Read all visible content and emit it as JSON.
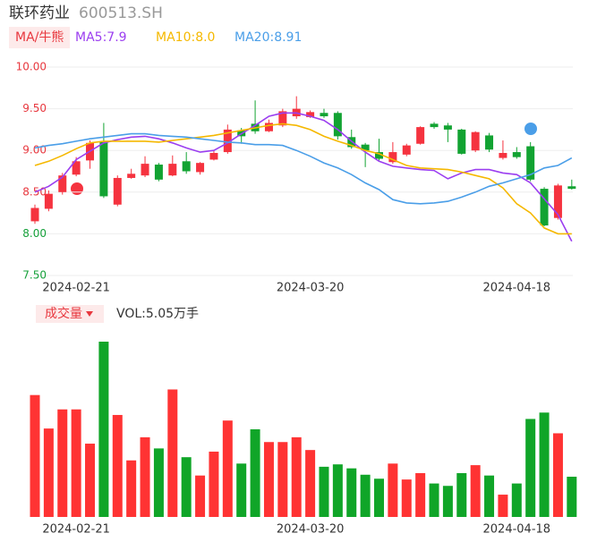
{
  "chart_data": [
    {
      "type": "candlestick",
      "title": "联环药业",
      "subtitle": "600513.SH",
      "indicator_label": "MA/牛熊",
      "categories": [
        null,
        null,
        null,
        "2024-02-21",
        null,
        null,
        null,
        null,
        null,
        null,
        null,
        null,
        null,
        null,
        null,
        null,
        null,
        null,
        null,
        null,
        "2024-03-20",
        null,
        null,
        null,
        null,
        null,
        null,
        null,
        null,
        null,
        null,
        null,
        null,
        null,
        null,
        "2024-04-18",
        null,
        null,
        null,
        null
      ],
      "open": [
        8.15,
        8.3,
        8.5,
        8.71,
        8.88,
        9.1,
        8.35,
        8.67,
        8.7,
        8.83,
        8.7,
        8.87,
        8.74,
        8.89,
        8.98,
        9.24,
        9.32,
        9.23,
        9.3,
        9.41,
        9.4,
        9.45,
        9.45,
        9.16,
        9.07,
        8.98,
        8.86,
        8.95,
        9.08,
        9.32,
        9.3,
        9.25,
        9.0,
        9.18,
        8.91,
        8.98,
        9.05,
        8.54,
        8.19,
        8.57
      ],
      "close": [
        8.31,
        8.48,
        8.7,
        8.87,
        9.09,
        8.45,
        8.67,
        8.72,
        8.84,
        8.65,
        8.84,
        8.75,
        8.85,
        8.97,
        9.25,
        9.17,
        9.23,
        9.33,
        9.47,
        9.5,
        9.46,
        9.41,
        9.17,
        9.04,
        9.0,
        8.9,
        8.98,
        9.06,
        9.28,
        9.28,
        9.25,
        8.96,
        9.22,
        9.01,
        8.97,
        8.92,
        8.65,
        8.1,
        8.58,
        8.54
      ],
      "high": [
        8.35,
        8.52,
        8.73,
        8.92,
        9.12,
        9.33,
        8.7,
        8.78,
        8.93,
        8.85,
        8.94,
        8.98,
        8.86,
        9.0,
        9.31,
        9.27,
        9.6,
        9.37,
        9.5,
        9.65,
        9.48,
        9.5,
        9.47,
        9.25,
        9.09,
        9.14,
        9.1,
        9.08,
        9.29,
        9.34,
        9.33,
        9.26,
        9.23,
        9.21,
        9.12,
        9.04,
        9.1,
        8.56,
        8.6,
        8.65
      ],
      "low": [
        8.12,
        8.27,
        8.47,
        8.69,
        8.78,
        8.43,
        8.33,
        8.66,
        8.68,
        8.63,
        8.69,
        8.72,
        8.71,
        8.88,
        8.96,
        9.08,
        9.2,
        9.22,
        9.28,
        9.38,
        9.39,
        9.39,
        9.13,
        9.02,
        8.8,
        8.88,
        8.84,
        8.93,
        9.07,
        9.26,
        9.1,
        8.95,
        8.98,
        8.98,
        8.89,
        8.9,
        8.63,
        8.09,
        8.17,
        8.53
      ],
      "up_color": "#f5333f",
      "down_color": "#12a332",
      "ylim": [
        7.5,
        10.0
      ],
      "yticks": [
        {
          "value": 10.0,
          "label": "10.00"
        },
        {
          "value": 9.5,
          "label": "9.50"
        },
        {
          "value": 9.0,
          "label": "9.00"
        },
        {
          "value": 8.5,
          "label": "8.50"
        },
        {
          "value": 8.0,
          "label": "8.00"
        },
        {
          "value": 7.5,
          "label": "7.50"
        }
      ],
      "ytick_colors": [
        "#e8383f",
        "#e8383f",
        "#e8383f",
        "#e8383f",
        "#15a03a",
        "#15a03a"
      ],
      "grid": true,
      "series": [
        {
          "name": "MA5:7.9",
          "color": "#9b3ef0",
          "values": [
            8.5,
            8.57,
            8.68,
            8.89,
            8.99,
            9.09,
            9.13,
            9.16,
            9.17,
            9.14,
            9.09,
            9.03,
            8.98,
            9.0,
            9.09,
            9.2,
            9.3,
            9.41,
            9.45,
            9.45,
            9.41,
            9.36,
            9.25,
            9.11,
            8.98,
            8.87,
            8.81,
            8.79,
            8.77,
            8.76,
            8.66,
            8.73,
            8.77,
            8.77,
            8.73,
            8.71,
            8.61,
            8.42,
            8.23,
            7.91
          ]
        },
        {
          "name": "MA10:8.0",
          "color": "#f5b800",
          "values": [
            8.82,
            8.87,
            8.94,
            9.02,
            9.09,
            9.11,
            9.11,
            9.11,
            9.11,
            9.1,
            9.12,
            9.14,
            9.16,
            9.18,
            9.21,
            9.24,
            9.27,
            9.3,
            9.32,
            9.3,
            9.25,
            9.17,
            9.11,
            9.06,
            9.0,
            8.96,
            8.89,
            8.82,
            8.79,
            8.78,
            8.77,
            8.74,
            8.7,
            8.66,
            8.55,
            8.36,
            8.25,
            8.07,
            8.0,
            8.0
          ]
        },
        {
          "name": "MA20:8.91",
          "color": "#4a9ee8",
          "values": [
            9.03,
            9.06,
            9.08,
            9.11,
            9.14,
            9.16,
            9.18,
            9.2,
            9.2,
            9.18,
            9.17,
            9.16,
            9.14,
            9.12,
            9.1,
            9.09,
            9.07,
            9.07,
            9.06,
            9.0,
            8.93,
            8.85,
            8.79,
            8.71,
            8.61,
            8.53,
            8.41,
            8.37,
            8.36,
            8.37,
            8.39,
            8.44,
            8.5,
            8.57,
            8.61,
            8.66,
            8.71,
            8.79,
            8.82,
            8.91
          ]
        }
      ]
    },
    {
      "type": "bar",
      "title": "成交量",
      "label": "VOL:5.05万手",
      "categories": [
        null,
        null,
        null,
        "2024-02-21",
        null,
        null,
        null,
        null,
        null,
        null,
        null,
        null,
        null,
        null,
        null,
        null,
        null,
        null,
        null,
        null,
        "2024-03-20",
        null,
        null,
        null,
        null,
        null,
        null,
        null,
        null,
        null,
        null,
        null,
        null,
        null,
        null,
        "2024-04-18",
        null,
        null,
        null,
        null
      ],
      "values": [
        15.3,
        11.1,
        13.5,
        13.5,
        9.2,
        22.0,
        12.8,
        7.1,
        10.0,
        8.6,
        16.0,
        7.5,
        5.2,
        8.2,
        12.1,
        6.7,
        11.0,
        9.4,
        9.4,
        10.0,
        8.4,
        6.3,
        6.6,
        6.1,
        5.3,
        4.8,
        6.7,
        4.7,
        5.5,
        4.2,
        3.9,
        5.5,
        6.5,
        5.2,
        2.8,
        4.2,
        12.3,
        13.1,
        10.5,
        5.05
      ],
      "ylim": [
        0,
        22.0
      ]
    }
  ]
}
